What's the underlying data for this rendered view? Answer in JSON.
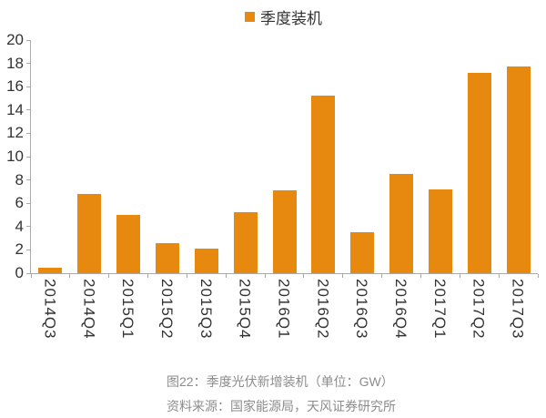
{
  "chart_data": {
    "type": "bar",
    "series_name": "季度装机",
    "categories": [
      "2014Q3",
      "2014Q4",
      "2015Q1",
      "2015Q2",
      "2015Q3",
      "2015Q4",
      "2016Q1",
      "2016Q2",
      "2016Q3",
      "2016Q4",
      "2017Q1",
      "2017Q2",
      "2017Q3"
    ],
    "values": [
      0.5,
      6.8,
      5.0,
      2.6,
      2.1,
      5.2,
      7.1,
      15.2,
      3.5,
      8.5,
      7.2,
      17.2,
      17.7
    ],
    "title": "",
    "xlabel": "",
    "ylabel": "",
    "ylim": [
      0,
      20
    ],
    "y_ticks": [
      0,
      2,
      4,
      6,
      8,
      10,
      12,
      14,
      16,
      18,
      20
    ],
    "grid": false,
    "legend_position": "top-center"
  },
  "caption": {
    "title": "图22：季度光伏新增装机（单位：GW）",
    "source": "资料来源：国家能源局，天风证券研究所"
  },
  "colors": {
    "accent": "#E8890F",
    "axis": "#A9A9A9",
    "text": "#333333",
    "caption_text": "#8C8C8C"
  }
}
